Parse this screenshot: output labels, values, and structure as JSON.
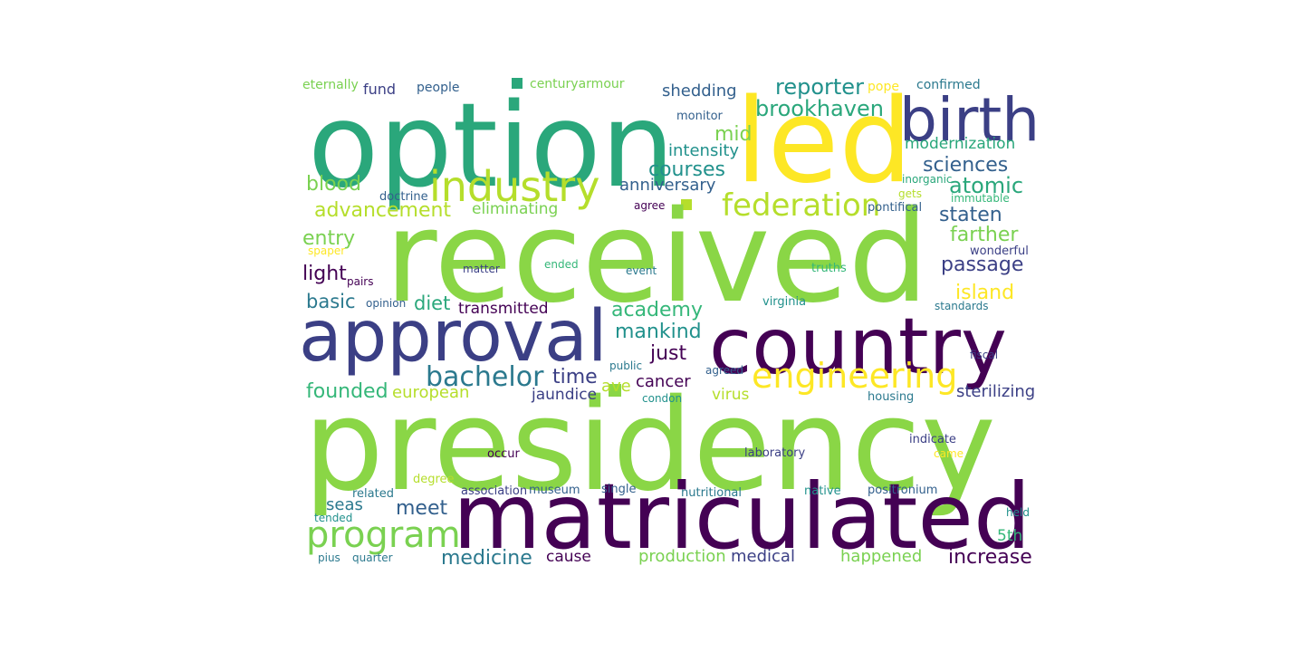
{
  "word_cloud": {
    "palette": {
      "dark_purple": "#440154",
      "indigo": "#3b3f85",
      "slate_blue": "#33608d",
      "teal_blue": "#2b798e",
      "teal": "#21918c",
      "sea_green": "#2aa77b",
      "green": "#35b779",
      "light_green": "#7ad151",
      "bright_green": "#8ad646",
      "lime": "#b5de2b",
      "yellow": "#fde725"
    },
    "words": [
      {
        "text": "option",
        "color": "#2aa77b",
        "weight": 10.0
      },
      {
        "text": "led",
        "color": "#fde725",
        "weight": 9.6
      },
      {
        "text": "birth",
        "color": "#3b3f85",
        "weight": 6.6
      },
      {
        "text": "received",
        "color": "#8ad646",
        "weight": 14.0
      },
      {
        "text": "approval",
        "color": "#3b3f85",
        "weight": 7.8
      },
      {
        "text": "country",
        "color": "#440154",
        "weight": 8.6
      },
      {
        "text": "presidency",
        "color": "#8ad646",
        "weight": 14.0
      },
      {
        "text": "matriculated",
        "color": "#440154",
        "weight": 10.0
      },
      {
        "text": "industry",
        "color": "#b5de2b",
        "weight": 4.6
      },
      {
        "text": "program",
        "color": "#7ad151",
        "weight": 4.0
      },
      {
        "text": "engineering",
        "color": "#fde725",
        "weight": 3.8
      },
      {
        "text": "federation",
        "color": "#b5de2b",
        "weight": 3.4
      },
      {
        "text": "bachelor",
        "color": "#2b798e",
        "weight": 3.0
      },
      {
        "text": "brookhaven",
        "color": "#2aa77b",
        "weight": 2.4
      },
      {
        "text": "reporter",
        "color": "#21918c",
        "weight": 2.4
      },
      {
        "text": "eternally",
        "color": "#7ad151",
        "weight": 1.4
      },
      {
        "text": "fund",
        "color": "#3b3f85",
        "weight": 1.6
      },
      {
        "text": "people",
        "color": "#33608d",
        "weight": 1.4
      },
      {
        "text": "centuryarmour",
        "color": "#7ad151",
        "weight": 1.4
      },
      {
        "text": "pope",
        "color": "#fde725",
        "weight": 1.4
      },
      {
        "text": "confirmed",
        "color": "#2b798e",
        "weight": 1.4
      },
      {
        "text": "shedding",
        "color": "#33608d",
        "weight": 1.8
      },
      {
        "text": "monitor",
        "color": "#33608d",
        "weight": 1.3
      },
      {
        "text": "mid",
        "color": "#7ad151",
        "weight": 2.2
      },
      {
        "text": "intensity",
        "color": "#21918c",
        "weight": 1.8
      },
      {
        "text": "courses",
        "color": "#21918c",
        "weight": 2.2
      },
      {
        "text": "anniversary",
        "color": "#33608d",
        "weight": 1.8
      },
      {
        "text": "modernization",
        "color": "#2aa77b",
        "weight": 1.7
      },
      {
        "text": "sciences",
        "color": "#33608d",
        "weight": 2.2
      },
      {
        "text": "atomic",
        "color": "#2aa77b",
        "weight": 2.4
      },
      {
        "text": "blood",
        "color": "#7ad151",
        "weight": 2.2
      },
      {
        "text": "advancement",
        "color": "#b5de2b",
        "weight": 2.2
      },
      {
        "text": "doctrine",
        "color": "#33608d",
        "weight": 1.3
      },
      {
        "text": "eliminating",
        "color": "#7ad151",
        "weight": 1.7
      },
      {
        "text": "agree",
        "color": "#440154",
        "weight": 1.2
      },
      {
        "text": "inorganic",
        "color": "#2aa77b",
        "weight": 1.2
      },
      {
        "text": "gets",
        "color": "#b5de2b",
        "weight": 1.2
      },
      {
        "text": "immutable",
        "color": "#35b779",
        "weight": 1.2
      },
      {
        "text": "pontifical",
        "color": "#33608d",
        "weight": 1.3
      },
      {
        "text": "staten",
        "color": "#33608d",
        "weight": 2.2
      },
      {
        "text": "entry",
        "color": "#7ad151",
        "weight": 2.2
      },
      {
        "text": "spaper",
        "color": "#fde725",
        "weight": 1.2
      },
      {
        "text": "farther",
        "color": "#7ad151",
        "weight": 2.2
      },
      {
        "text": "wonderful",
        "color": "#3b3f85",
        "weight": 1.3
      },
      {
        "text": "light",
        "color": "#440154",
        "weight": 2.2
      },
      {
        "text": "pairs",
        "color": "#440154",
        "weight": 1.2
      },
      {
        "text": "matter",
        "color": "#3b3f85",
        "weight": 1.2
      },
      {
        "text": "ended",
        "color": "#35b779",
        "weight": 1.2
      },
      {
        "text": "event",
        "color": "#2b798e",
        "weight": 1.2
      },
      {
        "text": "truths",
        "color": "#35b779",
        "weight": 1.3
      },
      {
        "text": "passage",
        "color": "#3b3f85",
        "weight": 2.2
      },
      {
        "text": "basic",
        "color": "#2b798e",
        "weight": 2.1
      },
      {
        "text": "opinion",
        "color": "#33608d",
        "weight": 1.2
      },
      {
        "text": "diet",
        "color": "#2aa77b",
        "weight": 2.1
      },
      {
        "text": "academy",
        "color": "#35b779",
        "weight": 2.2
      },
      {
        "text": "transmitted",
        "color": "#440154",
        "weight": 1.7
      },
      {
        "text": "virginia",
        "color": "#21918c",
        "weight": 1.3
      },
      {
        "text": "standards",
        "color": "#2b798e",
        "weight": 1.2
      },
      {
        "text": "island",
        "color": "#fde725",
        "weight": 2.2
      },
      {
        "text": "mankind",
        "color": "#21918c",
        "weight": 2.2
      },
      {
        "text": "just",
        "color": "#440154",
        "weight": 2.2
      },
      {
        "text": "time",
        "color": "#3b3f85",
        "weight": 2.2
      },
      {
        "text": "public",
        "color": "#2b798e",
        "weight": 1.2
      },
      {
        "text": "agreed",
        "color": "#33608d",
        "weight": 1.2
      },
      {
        "text": "fiscal",
        "color": "#3b3f85",
        "weight": 1.2
      },
      {
        "text": "founded",
        "color": "#35b779",
        "weight": 2.2
      },
      {
        "text": "european",
        "color": "#b5de2b",
        "weight": 1.8
      },
      {
        "text": "jaundice",
        "color": "#3b3f85",
        "weight": 1.7
      },
      {
        "text": "cancer",
        "color": "#440154",
        "weight": 1.8
      },
      {
        "text": "condon",
        "color": "#21918c",
        "weight": 1.2
      },
      {
        "text": "virus",
        "color": "#b5de2b",
        "weight": 1.7
      },
      {
        "text": "housing",
        "color": "#2b798e",
        "weight": 1.3
      },
      {
        "text": "sterilizing",
        "color": "#3b3f85",
        "weight": 1.8
      },
      {
        "text": "laboratory",
        "color": "#3b3f85",
        "weight": 1.3
      },
      {
        "text": "indicate",
        "color": "#3b3f85",
        "weight": 1.3
      },
      {
        "text": "came",
        "color": "#fde725",
        "weight": 1.2
      },
      {
        "text": "occur",
        "color": "#440154",
        "weight": 1.3
      },
      {
        "text": "degree",
        "color": "#b5de2b",
        "weight": 1.3
      },
      {
        "text": "related",
        "color": "#2b798e",
        "weight": 1.3
      },
      {
        "text": "association",
        "color": "#3b3f85",
        "weight": 1.3
      },
      {
        "text": "museum",
        "color": "#33608d",
        "weight": 1.3
      },
      {
        "text": "single",
        "color": "#33608d",
        "weight": 1.3
      },
      {
        "text": "nutritional",
        "color": "#2b798e",
        "weight": 1.3
      },
      {
        "text": "native",
        "color": "#21918c",
        "weight": 1.3
      },
      {
        "text": "positronium",
        "color": "#33608d",
        "weight": 1.3
      },
      {
        "text": "seas",
        "color": "#2b798e",
        "weight": 1.8
      },
      {
        "text": "tended",
        "color": "#21918c",
        "weight": 1.2
      },
      {
        "text": "meet",
        "color": "#33608d",
        "weight": 2.2
      },
      {
        "text": "held",
        "color": "#21918c",
        "weight": 1.2
      },
      {
        "text": "5th",
        "color": "#35b779",
        "weight": 1.7
      },
      {
        "text": "medicine",
        "color": "#2b798e",
        "weight": 2.2
      },
      {
        "text": "cause",
        "color": "#440154",
        "weight": 1.7
      },
      {
        "text": "production",
        "color": "#7ad151",
        "weight": 1.8
      },
      {
        "text": "medical",
        "color": "#3b3f85",
        "weight": 1.8
      },
      {
        "text": "happened",
        "color": "#7ad151",
        "weight": 1.8
      },
      {
        "text": "increase",
        "color": "#440154",
        "weight": 2.2
      },
      {
        "text": "pius",
        "color": "#2b798e",
        "weight": 1.2
      },
      {
        "text": "quarter",
        "color": "#2b798e",
        "weight": 1.2
      },
      {
        "text": "ave",
        "color": "#b5de2b",
        "weight": 1.8
      }
    ]
  }
}
